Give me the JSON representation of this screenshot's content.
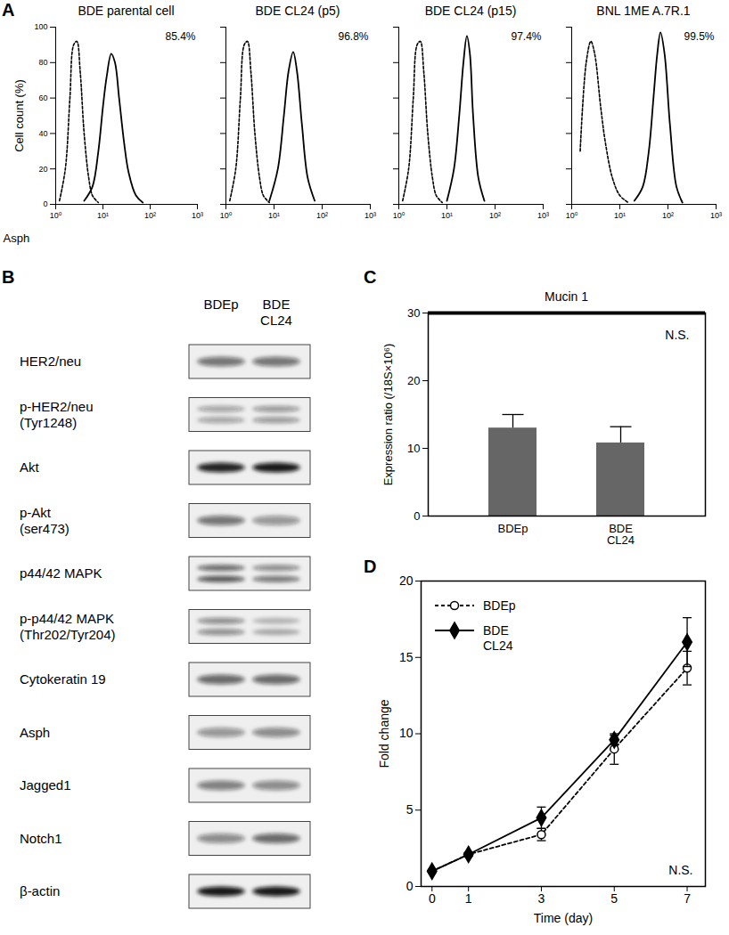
{
  "chart_data": [
    {
      "type": "line",
      "panel": "A",
      "title": "BDE parental cell",
      "xlabel": "Asph",
      "ylabel": "Cell count (%)",
      "log": "x",
      "xlim": [
        1,
        1000
      ],
      "xticks": [
        {
          "value": 1,
          "label": "10⁰"
        },
        {
          "value": 10,
          "label": "10¹"
        },
        {
          "value": 100,
          "label": "10²"
        },
        {
          "value": 1000,
          "label": "10³"
        }
      ],
      "ylim": [
        0,
        100
      ],
      "yticks": [
        0,
        20,
        40,
        60,
        80,
        100
      ],
      "tick_labels": true,
      "annotation": "85.4%",
      "series": [
        {
          "color": "#000000",
          "line_style": "dashed",
          "x": [
            1.2,
            1.6,
            2,
            2.4,
            2.8,
            3.3,
            4,
            5,
            6,
            8
          ],
          "values": [
            2,
            20,
            60,
            90,
            92,
            75,
            40,
            15,
            5,
            1
          ]
        },
        {
          "color": "#000000",
          "line_style": "solid",
          "x": [
            4,
            6,
            8,
            10,
            12,
            15,
            18,
            22,
            28,
            35,
            50,
            70
          ],
          "values": [
            2,
            10,
            30,
            55,
            72,
            85,
            80,
            60,
            35,
            18,
            5,
            1
          ]
        }
      ]
    },
    {
      "type": "line",
      "title": "BDE CL24 (p5)",
      "log": "x",
      "xlim": [
        1,
        1000
      ],
      "xticks": [
        {
          "value": 1,
          "label": "10⁰"
        },
        {
          "value": 10,
          "label": "10¹"
        },
        {
          "value": 100,
          "label": "10²"
        },
        {
          "value": 1000,
          "label": "10³"
        }
      ],
      "ylim": [
        0,
        100
      ],
      "yticks": [
        0,
        20,
        40,
        60,
        80,
        100
      ],
      "tick_labels": "x",
      "annotation": "96.8%",
      "series": [
        {
          "color": "#000000",
          "line_style": "dashed",
          "x": [
            1.2,
            1.6,
            2,
            2.4,
            2.8,
            3.3,
            4,
            5,
            6,
            8
          ],
          "values": [
            2,
            20,
            60,
            90,
            92,
            75,
            40,
            15,
            5,
            1
          ]
        },
        {
          "color": "#000000",
          "line_style": "solid",
          "x": [
            8,
            12,
            16,
            20,
            25,
            30,
            38,
            50,
            70
          ],
          "values": [
            2,
            20,
            50,
            75,
            86,
            75,
            45,
            15,
            2
          ]
        }
      ]
    },
    {
      "type": "line",
      "title": "BDE CL24 (p15)",
      "log": "x",
      "xlim": [
        1,
        1000
      ],
      "xticks": [
        {
          "value": 1,
          "label": "10⁰"
        },
        {
          "value": 10,
          "label": "10¹"
        },
        {
          "value": 100,
          "label": "10²"
        },
        {
          "value": 1000,
          "label": "10³"
        }
      ],
      "ylim": [
        0,
        100
      ],
      "yticks": [
        0,
        20,
        40,
        60,
        80,
        100
      ],
      "tick_labels": "x",
      "annotation": "97.4%",
      "series": [
        {
          "color": "#000000",
          "line_style": "dashed",
          "x": [
            1.2,
            1.6,
            2,
            2.4,
            2.8,
            3.3,
            4,
            5,
            6,
            8
          ],
          "values": [
            2,
            20,
            60,
            90,
            92,
            75,
            40,
            15,
            5,
            1
          ]
        },
        {
          "color": "#000000",
          "line_style": "solid",
          "x": [
            10,
            14,
            18,
            22,
            26,
            30,
            35,
            45,
            60
          ],
          "values": [
            2,
            20,
            50,
            80,
            95,
            85,
            50,
            15,
            2
          ]
        }
      ]
    },
    {
      "type": "line",
      "title": "BNL 1ME A.7R.1",
      "log": "x",
      "xlim": [
        1,
        1000
      ],
      "xticks": [
        {
          "value": 1,
          "label": "10⁰"
        },
        {
          "value": 10,
          "label": "10¹"
        },
        {
          "value": 100,
          "label": "10²"
        },
        {
          "value": 1000,
          "label": "10³"
        }
      ],
      "ylim": [
        0,
        100
      ],
      "yticks": [
        0,
        20,
        40,
        60,
        80,
        100
      ],
      "tick_labels": "x",
      "annotation": "99.5%",
      "series": [
        {
          "color": "#000000",
          "line_style": "dashed",
          "x": [
            1.5,
            2,
            2.5,
            3,
            4,
            5,
            7,
            10,
            15
          ],
          "values": [
            30,
            80,
            92,
            85,
            55,
            35,
            15,
            5,
            1
          ]
        },
        {
          "color": "#000000",
          "line_style": "solid",
          "x": [
            20,
            30,
            40,
            50,
            60,
            70,
            85,
            110,
            150,
            200
          ],
          "values": [
            2,
            10,
            30,
            60,
            85,
            97,
            85,
            45,
            10,
            1
          ]
        }
      ]
    },
    {
      "type": "blot",
      "panel": "B",
      "lanes": [
        "BDEp",
        "BDE\nCL24"
      ],
      "rows": [
        {
          "label": "HER2/neu",
          "intensities": [
            [
              0.55
            ],
            [
              0.55
            ]
          ]
        },
        {
          "label": "p-HER2/neu\n(Tyr1248)",
          "intensities": [
            [
              0.35,
              0.35
            ],
            [
              0.4,
              0.4
            ]
          ]
        },
        {
          "label": "Akt",
          "intensities": [
            [
              0.9
            ],
            [
              0.95
            ]
          ]
        },
        {
          "label": "p-Akt\n(ser473)",
          "intensities": [
            [
              0.55
            ],
            [
              0.4
            ]
          ]
        },
        {
          "label": "p44/42 MAPK",
          "intensities": [
            [
              0.6,
              0.7
            ],
            [
              0.45,
              0.55
            ]
          ]
        },
        {
          "label": "p-p44/42 MAPK\n(Thr202/Tyr204)",
          "intensities": [
            [
              0.45,
              0.45
            ],
            [
              0.25,
              0.3
            ]
          ]
        },
        {
          "label": "Cytokeratin 19",
          "intensities": [
            [
              0.6
            ],
            [
              0.6
            ]
          ]
        },
        {
          "label": "Asph",
          "intensities": [
            [
              0.4
            ],
            [
              0.45
            ]
          ]
        },
        {
          "label": "Jagged1",
          "intensities": [
            [
              0.5
            ],
            [
              0.45
            ]
          ]
        },
        {
          "label": "Notch1",
          "intensities": [
            [
              0.45
            ],
            [
              0.6
            ]
          ]
        },
        {
          "label": "β-actin",
          "intensities": [
            [
              0.95
            ],
            [
              0.95
            ]
          ]
        }
      ]
    },
    {
      "type": "bar",
      "panel": "C",
      "title": "Mucin 1",
      "ylabel": "Expression ratio (/18S×10⁶)",
      "categories": [
        "BDEp",
        "BDE\nCL24"
      ],
      "values": [
        13.0,
        10.8
      ],
      "errors": [
        2.0,
        2.4
      ],
      "color": "#666666",
      "ylim": [
        0,
        30
      ],
      "yticks": [
        0,
        10,
        20,
        30
      ],
      "annotation": "N.S."
    },
    {
      "type": "line",
      "panel": "D",
      "xlabel": "Time (day)",
      "ylabel": "Fold change",
      "x": [
        0,
        1,
        3,
        5,
        7
      ],
      "xlim": [
        -0.3,
        7.5
      ],
      "xticks": [
        0,
        1,
        3,
        5,
        7
      ],
      "ylim": [
        0,
        20
      ],
      "yticks": [
        0,
        5,
        10,
        15,
        20
      ],
      "legend": "top-left",
      "annotation": "N.S.",
      "series": [
        {
          "name": "BDEp",
          "color": "#000000",
          "line_style": "dashed",
          "marker": "circle",
          "values": [
            1.0,
            2.1,
            3.4,
            9.0,
            14.3
          ],
          "errors": [
            0.05,
            0.1,
            0.4,
            1.0,
            1.1
          ]
        },
        {
          "name": "BDE\nCL24",
          "color": "#000000",
          "line_style": "solid",
          "marker": "diamond",
          "values": [
            1.0,
            2.1,
            4.5,
            9.6,
            16.0
          ],
          "errors": [
            0.05,
            0.1,
            0.7,
            0.3,
            1.6
          ]
        }
      ]
    }
  ]
}
